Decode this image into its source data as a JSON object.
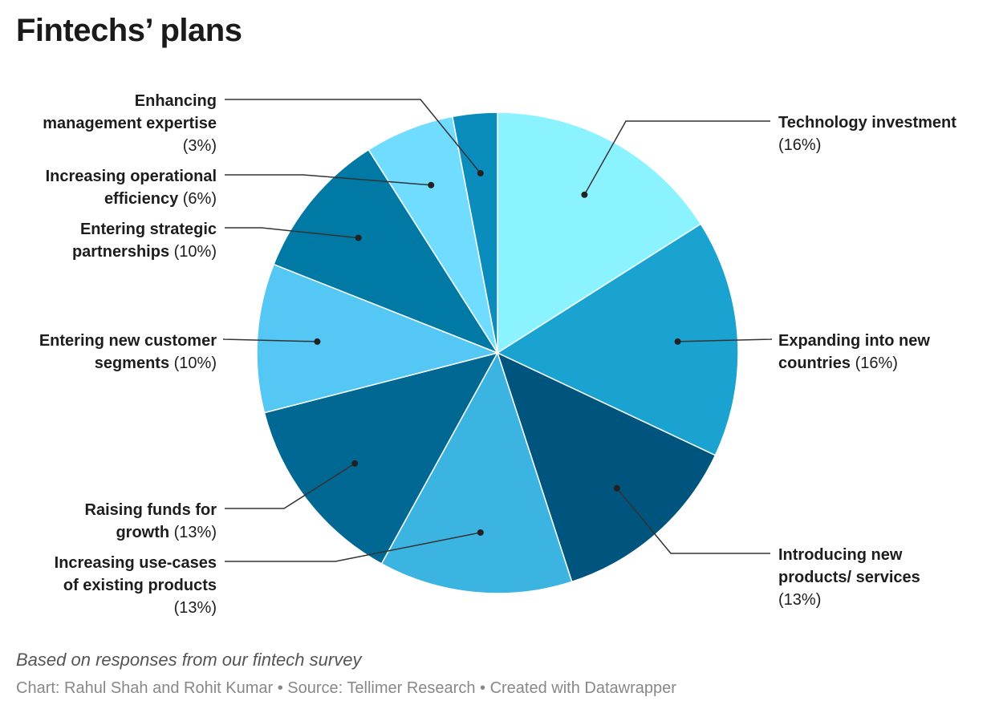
{
  "title": "Fintechs’ plans",
  "note": "Based on responses from our fintech survey",
  "footer": "Chart: Rahul Shah and Rohit Kumar • Source: Tellimer Research • Created with Datawrapper",
  "chart_data": {
    "type": "pie",
    "start": "12 o'clock, clockwise",
    "slices": [
      {
        "name_lines": [
          "Technology investment"
        ],
        "pct_label": "(16%)",
        "pct_inline": false,
        "value": 16,
        "color": "#8bf3ff"
      },
      {
        "name_lines": [
          "Expanding into new",
          "countries"
        ],
        "pct_label": "(16%)",
        "pct_inline": true,
        "value": 16,
        "color": "#1aa3d0"
      },
      {
        "name_lines": [
          "Introducing new",
          "products/ services"
        ],
        "pct_label": "(13%)",
        "pct_inline": false,
        "value": 13,
        "color": "#00557e"
      },
      {
        "name_lines": [
          "Increasing use-cases",
          "of existing products"
        ],
        "pct_label": "(13%)",
        "pct_inline": false,
        "value": 13,
        "color": "#3bb4e1"
      },
      {
        "name_lines": [
          "Raising funds for",
          "growth"
        ],
        "pct_label": "(13%)",
        "pct_inline": true,
        "value": 13,
        "color": "#006893"
      },
      {
        "name_lines": [
          "Entering new customer",
          "segments"
        ],
        "pct_label": "(10%)",
        "pct_inline": true,
        "value": 10,
        "color": "#55c7f5"
      },
      {
        "name_lines": [
          "Entering strategic",
          "partnerships"
        ],
        "pct_label": "(10%)",
        "pct_inline": true,
        "value": 10,
        "color": "#0079a5"
      },
      {
        "name_lines": [
          "Increasing operational",
          "efficiency"
        ],
        "pct_label": "(6%)",
        "pct_inline": true,
        "value": 6,
        "color": "#70dcff"
      },
      {
        "name_lines": [
          "Enhancing",
          "management expertise"
        ],
        "pct_label": "(3%)",
        "pct_inline": false,
        "value": 3,
        "color": "#0a8dbd"
      }
    ]
  }
}
